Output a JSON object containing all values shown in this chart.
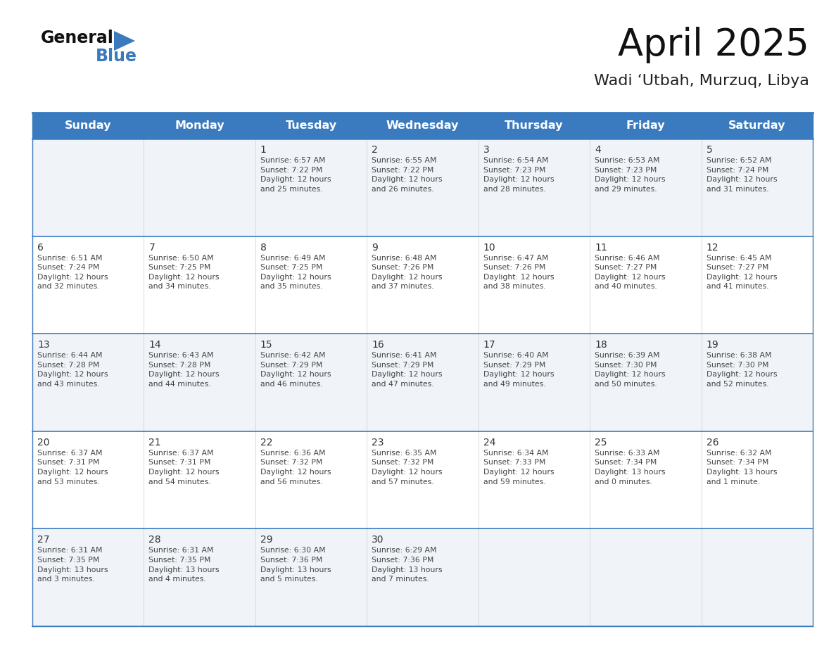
{
  "title": "April 2025",
  "subtitle": "Wadi ‘Utbah, Murzuq, Libya",
  "days_of_week": [
    "Sunday",
    "Monday",
    "Tuesday",
    "Wednesday",
    "Thursday",
    "Friday",
    "Saturday"
  ],
  "header_bg": "#3a7abf",
  "header_text": "#ffffff",
  "row_bg_even": "#f0f4f8",
  "row_bg_odd": "#ffffff",
  "row_border_color": "#3a7abf",
  "cell_divider_color": "#cccccc",
  "day_number_color": "#333333",
  "cell_text_color": "#444444",
  "title_color": "#111111",
  "subtitle_color": "#222222",
  "logo_general_color": "#111111",
  "logo_blue_color": "#3a7abf",
  "logo_triangle_color": "#3a7abf",
  "calendar_data": [
    {
      "day": 1,
      "col": 2,
      "row": 0,
      "sunrise": "6:57 AM",
      "sunset": "7:22 PM",
      "daylight": "12 hours and 25 minutes."
    },
    {
      "day": 2,
      "col": 3,
      "row": 0,
      "sunrise": "6:55 AM",
      "sunset": "7:22 PM",
      "daylight": "12 hours and 26 minutes."
    },
    {
      "day": 3,
      "col": 4,
      "row": 0,
      "sunrise": "6:54 AM",
      "sunset": "7:23 PM",
      "daylight": "12 hours and 28 minutes."
    },
    {
      "day": 4,
      "col": 5,
      "row": 0,
      "sunrise": "6:53 AM",
      "sunset": "7:23 PM",
      "daylight": "12 hours and 29 minutes."
    },
    {
      "day": 5,
      "col": 6,
      "row": 0,
      "sunrise": "6:52 AM",
      "sunset": "7:24 PM",
      "daylight": "12 hours and 31 minutes."
    },
    {
      "day": 6,
      "col": 0,
      "row": 1,
      "sunrise": "6:51 AM",
      "sunset": "7:24 PM",
      "daylight": "12 hours and 32 minutes."
    },
    {
      "day": 7,
      "col": 1,
      "row": 1,
      "sunrise": "6:50 AM",
      "sunset": "7:25 PM",
      "daylight": "12 hours and 34 minutes."
    },
    {
      "day": 8,
      "col": 2,
      "row": 1,
      "sunrise": "6:49 AM",
      "sunset": "7:25 PM",
      "daylight": "12 hours and 35 minutes."
    },
    {
      "day": 9,
      "col": 3,
      "row": 1,
      "sunrise": "6:48 AM",
      "sunset": "7:26 PM",
      "daylight": "12 hours and 37 minutes."
    },
    {
      "day": 10,
      "col": 4,
      "row": 1,
      "sunrise": "6:47 AM",
      "sunset": "7:26 PM",
      "daylight": "12 hours and 38 minutes."
    },
    {
      "day": 11,
      "col": 5,
      "row": 1,
      "sunrise": "6:46 AM",
      "sunset": "7:27 PM",
      "daylight": "12 hours and 40 minutes."
    },
    {
      "day": 12,
      "col": 6,
      "row": 1,
      "sunrise": "6:45 AM",
      "sunset": "7:27 PM",
      "daylight": "12 hours and 41 minutes."
    },
    {
      "day": 13,
      "col": 0,
      "row": 2,
      "sunrise": "6:44 AM",
      "sunset": "7:28 PM",
      "daylight": "12 hours and 43 minutes."
    },
    {
      "day": 14,
      "col": 1,
      "row": 2,
      "sunrise": "6:43 AM",
      "sunset": "7:28 PM",
      "daylight": "12 hours and 44 minutes."
    },
    {
      "day": 15,
      "col": 2,
      "row": 2,
      "sunrise": "6:42 AM",
      "sunset": "7:29 PM",
      "daylight": "12 hours and 46 minutes."
    },
    {
      "day": 16,
      "col": 3,
      "row": 2,
      "sunrise": "6:41 AM",
      "sunset": "7:29 PM",
      "daylight": "12 hours and 47 minutes."
    },
    {
      "day": 17,
      "col": 4,
      "row": 2,
      "sunrise": "6:40 AM",
      "sunset": "7:29 PM",
      "daylight": "12 hours and 49 minutes."
    },
    {
      "day": 18,
      "col": 5,
      "row": 2,
      "sunrise": "6:39 AM",
      "sunset": "7:30 PM",
      "daylight": "12 hours and 50 minutes."
    },
    {
      "day": 19,
      "col": 6,
      "row": 2,
      "sunrise": "6:38 AM",
      "sunset": "7:30 PM",
      "daylight": "12 hours and 52 minutes."
    },
    {
      "day": 20,
      "col": 0,
      "row": 3,
      "sunrise": "6:37 AM",
      "sunset": "7:31 PM",
      "daylight": "12 hours and 53 minutes."
    },
    {
      "day": 21,
      "col": 1,
      "row": 3,
      "sunrise": "6:37 AM",
      "sunset": "7:31 PM",
      "daylight": "12 hours and 54 minutes."
    },
    {
      "day": 22,
      "col": 2,
      "row": 3,
      "sunrise": "6:36 AM",
      "sunset": "7:32 PM",
      "daylight": "12 hours and 56 minutes."
    },
    {
      "day": 23,
      "col": 3,
      "row": 3,
      "sunrise": "6:35 AM",
      "sunset": "7:32 PM",
      "daylight": "12 hours and 57 minutes."
    },
    {
      "day": 24,
      "col": 4,
      "row": 3,
      "sunrise": "6:34 AM",
      "sunset": "7:33 PM",
      "daylight": "12 hours and 59 minutes."
    },
    {
      "day": 25,
      "col": 5,
      "row": 3,
      "sunrise": "6:33 AM",
      "sunset": "7:34 PM",
      "daylight": "13 hours and 0 minutes."
    },
    {
      "day": 26,
      "col": 6,
      "row": 3,
      "sunrise": "6:32 AM",
      "sunset": "7:34 PM",
      "daylight": "13 hours and 1 minute."
    },
    {
      "day": 27,
      "col": 0,
      "row": 4,
      "sunrise": "6:31 AM",
      "sunset": "7:35 PM",
      "daylight": "13 hours and 3 minutes."
    },
    {
      "day": 28,
      "col": 1,
      "row": 4,
      "sunrise": "6:31 AM",
      "sunset": "7:35 PM",
      "daylight": "13 hours and 4 minutes."
    },
    {
      "day": 29,
      "col": 2,
      "row": 4,
      "sunrise": "6:30 AM",
      "sunset": "7:36 PM",
      "daylight": "13 hours and 5 minutes."
    },
    {
      "day": 30,
      "col": 3,
      "row": 4,
      "sunrise": "6:29 AM",
      "sunset": "7:36 PM",
      "daylight": "13 hours and 7 minutes."
    }
  ]
}
